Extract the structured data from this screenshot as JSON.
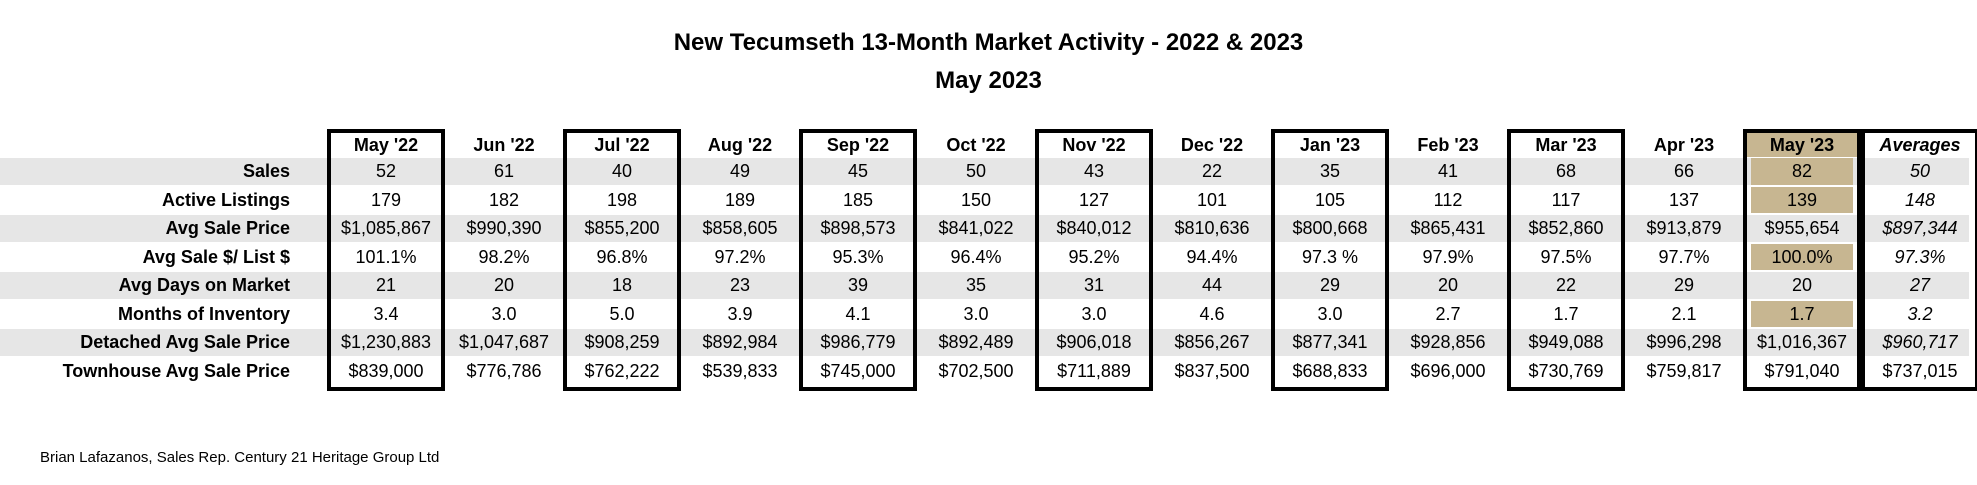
{
  "chart_data": {
    "type": "table",
    "title": "New Tecumseth 13-Month Market Activity - 2022 & 2023",
    "subtitle": "May 2023",
    "columns": [
      "May '22",
      "Jun '22",
      "Jul '22",
      "Aug '22",
      "Sep '22",
      "Oct '22",
      "Nov '22",
      "Dec '22",
      "Jan '23",
      "Feb '23",
      "Mar '23",
      "Apr '23",
      "May '23",
      "Averages"
    ],
    "highlight_column": "May '23",
    "highlight_color": "#c7b691",
    "rows": [
      {
        "label": "Sales",
        "values": [
          "52",
          "61",
          "40",
          "49",
          "45",
          "50",
          "43",
          "22",
          "35",
          "41",
          "68",
          "66",
          "82",
          "50"
        ]
      },
      {
        "label": "Active Listings",
        "values": [
          "179",
          "182",
          "198",
          "189",
          "185",
          "150",
          "127",
          "101",
          "105",
          "112",
          "117",
          "137",
          "139",
          "148"
        ]
      },
      {
        "label": "Avg Sale Price",
        "values": [
          "$1,085,867",
          "$990,390",
          "$855,200",
          "$858,605",
          "$898,573",
          "$841,022",
          "$840,012",
          "$810,636",
          "$800,668",
          "$865,431",
          "$852,860",
          "$913,879",
          "$955,654",
          "$897,344"
        ]
      },
      {
        "label": "Avg Sale $/ List $",
        "values": [
          "101.1%",
          "98.2%",
          "96.8%",
          "97.2%",
          "95.3%",
          "96.4%",
          "95.2%",
          "94.4%",
          "97.3 %",
          "97.9%",
          "97.5%",
          "97.7%",
          "100.0%",
          "97.3%"
        ]
      },
      {
        "label": "Avg Days on Market",
        "values": [
          "21",
          "20",
          "18",
          "23",
          "39",
          "35",
          "31",
          "44",
          "29",
          "20",
          "22",
          "29",
          "20",
          "27"
        ]
      },
      {
        "label": "Months of Inventory",
        "values": [
          "3.4",
          "3.0",
          "5.0",
          "3.9",
          "4.1",
          "3.0",
          "3.0",
          "4.6",
          "3.0",
          "2.7",
          "1.7",
          "2.1",
          "1.7",
          "3.2"
        ]
      },
      {
        "label": "Detached Avg Sale Price",
        "values": [
          "$1,230,883",
          "$1,047,687",
          "$908,259",
          "$892,984",
          "$986,779",
          "$892,489",
          "$906,018",
          "$856,267",
          "$877,341",
          "$928,856",
          "$949,088",
          "$996,298",
          "$1,016,367",
          "$960,717"
        ]
      },
      {
        "label": "Townhouse Avg Sale Price",
        "values": [
          "$839,000",
          "$776,786",
          "$762,222",
          "$539,833",
          "$745,000",
          "$702,500",
          "$711,889",
          "$837,500",
          "$688,833",
          "$696,000",
          "$730,769",
          "$759,817",
          "$791,040",
          "$737,015"
        ]
      }
    ],
    "highlighted_cells": [
      [
        "Sales",
        "May '23"
      ],
      [
        "Active Listings",
        "May '23"
      ],
      [
        "Avg Sale $/ List $",
        "May '23"
      ],
      [
        "Months of Inventory",
        "May '23"
      ]
    ],
    "shaded_rows": [
      "Sales",
      "Avg Sale Price",
      "Avg Days on Market",
      "Detached Avg Sale Price"
    ],
    "avg_italic_rows": [
      "Sales",
      "Active Listings",
      "Avg Sale Price",
      "Avg Sale $/ List $",
      "Avg Days on Market",
      "Months of Inventory",
      "Detached Avg Sale Price"
    ]
  },
  "footer": "Brian Lafazanos, Sales Rep. Century 21 Heritage Group Ltd"
}
